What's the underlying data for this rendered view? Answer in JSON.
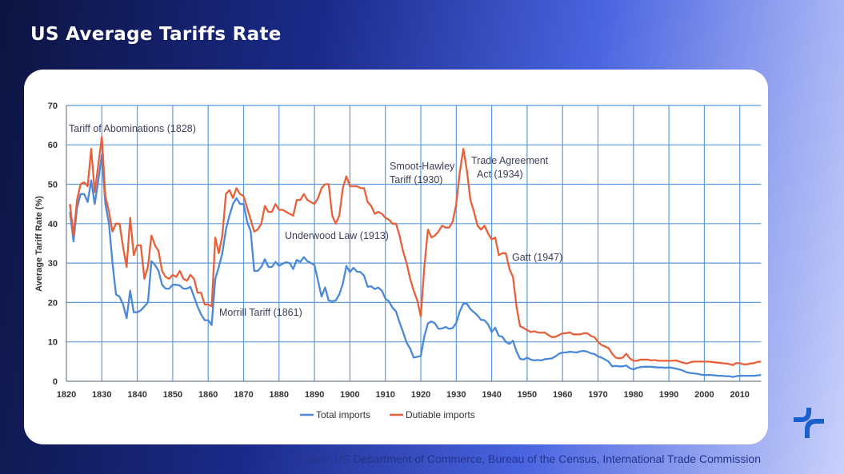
{
  "header": {
    "title": "US Average Tariffs Rate"
  },
  "footer": {
    "source": "Source: US Department of Commerce, Bureau of the Census, International Trade Commission"
  },
  "logo": {
    "icon": "brand-logo-icon",
    "color": "#1a5fd0"
  },
  "chart_data": {
    "type": "line",
    "title": "",
    "xlabel": "",
    "ylabel": "Average Tariff Rate (%)",
    "xlim": [
      1820,
      2016
    ],
    "ylim": [
      0,
      70
    ],
    "grid": true,
    "legend": "bottom-center",
    "x_ticks": [
      "1820",
      "1830",
      "1840",
      "1850",
      "1860",
      "1870",
      "1880",
      "1890",
      "1900",
      "1910",
      "1920",
      "1930",
      "1940",
      "1950",
      "1960",
      "1970",
      "1980",
      "1990",
      "2000",
      "2010"
    ],
    "y_ticks": [
      "0",
      "10",
      "20",
      "30",
      "40",
      "50",
      "60",
      "70"
    ],
    "x_start": 1821,
    "series": [
      {
        "name": "Total imports",
        "color": "#4a88d8",
        "values": [
          43,
          35.5,
          44,
          47.5,
          47.5,
          45.5,
          51,
          45,
          51,
          57.5,
          45,
          40,
          30,
          22,
          21.5,
          19.5,
          16,
          23,
          17.5,
          17.5,
          18,
          19,
          20,
          30.5,
          29.5,
          28,
          24.5,
          23.5,
          23.5,
          24.5,
          24.5,
          24.3,
          23.5,
          23.5,
          24,
          21.5,
          19,
          17,
          15.5,
          15.5,
          14.3,
          26,
          29,
          32.5,
          38.5,
          42,
          45,
          46.5,
          45,
          45,
          40.5,
          38,
          28,
          28,
          29,
          31,
          29,
          29,
          30.3,
          29.3,
          29.8,
          30.2,
          30,
          28.5,
          30.8,
          30.3,
          31.5,
          30.5,
          30,
          29.5,
          25.5,
          21.5,
          23.8,
          20.5,
          20.3,
          20.5,
          22,
          24.7,
          29.3,
          27.7,
          28.8,
          27.8,
          27.7,
          26.8,
          24,
          24.1,
          23.4,
          23.8,
          23,
          21,
          20.3,
          18.7,
          17.7,
          15,
          12.5,
          9.8,
          8.3,
          6,
          6.2,
          6.4,
          11.4,
          14.7,
          15.2,
          14.7,
          13.3,
          13.4,
          13.8,
          13.3,
          13.5,
          14.8,
          17.7,
          19.7,
          19.7,
          18.3,
          17.5,
          16.7,
          15.6,
          15.5,
          14.4,
          12.5,
          13.6,
          11.5,
          11.3,
          10,
          9.5,
          10.3,
          7.6,
          5.7,
          5.5,
          6,
          5.5,
          5.3,
          5.4,
          5.3,
          5.6,
          5.7,
          5.8,
          6.3,
          7,
          7.3,
          7.3,
          7.5,
          7.4,
          7.3,
          7.6,
          7.7,
          7.5,
          7.1,
          6.9,
          6.3,
          6,
          5.5,
          5,
          3.8,
          3.9,
          3.8,
          3.8,
          4,
          3.3,
          3,
          3.4,
          3.6,
          3.7,
          3.7,
          3.7,
          3.6,
          3.5,
          3.5,
          3.4,
          3.5,
          3.4,
          3.2,
          3,
          2.7,
          2.3,
          2.1,
          2,
          1.9,
          1.7,
          1.6,
          1.6,
          1.6,
          1.5,
          1.4,
          1.4,
          1.3,
          1.3,
          1.1,
          1.3,
          1.4,
          1.4,
          1.4,
          1.4,
          1.4,
          1.5,
          1.6
        ]
      },
      {
        "name": "Dutiable imports",
        "color": "#e8603a",
        "values": [
          45,
          37,
          46,
          50,
          50.5,
          49.5,
          59,
          48,
          55,
          62,
          47,
          43,
          38,
          40,
          40,
          34,
          29,
          41.5,
          32,
          34.5,
          34.5,
          26,
          29,
          37,
          34.5,
          33,
          28,
          26.5,
          26,
          27,
          26.5,
          28,
          26,
          25.5,
          27,
          26,
          22.5,
          22.5,
          19.5,
          19.5,
          19,
          36.5,
          32.5,
          37,
          47.5,
          48.5,
          46.5,
          49,
          47.5,
          47,
          44,
          41,
          38,
          38.5,
          40,
          44.5,
          43,
          43,
          45,
          43.5,
          43.5,
          43,
          42.5,
          42,
          46,
          46,
          47.5,
          46,
          45.5,
          45,
          46.5,
          49,
          50,
          50,
          42,
          40,
          42,
          49,
          52,
          49.5,
          49.5,
          49.5,
          49,
          49,
          45.5,
          44.5,
          42.5,
          43,
          42.5,
          41.5,
          41,
          40,
          40,
          37,
          33,
          30,
          26,
          23,
          20.5,
          16.5,
          29,
          38.5,
          36.5,
          37,
          38,
          39.5,
          39,
          39,
          40.5,
          45,
          53,
          59,
          53.5,
          46,
          43,
          39.5,
          38.5,
          39.5,
          37.5,
          36,
          36.5,
          32,
          32.5,
          32.5,
          28.5,
          26.5,
          19,
          14,
          13.5,
          13,
          12.5,
          12.7,
          12.4,
          12.3,
          12.4,
          11.7,
          11.2,
          11.3,
          11.7,
          12.2,
          12.2,
          12.4,
          11.9,
          11.9,
          11.9,
          12.2,
          12.2,
          11.5,
          11.2,
          10,
          9.2,
          8.8,
          8.4,
          7,
          6,
          5.8,
          6,
          7,
          5.8,
          5.2,
          5.2,
          5.5,
          5.5,
          5.5,
          5.3,
          5.4,
          5.2,
          5.2,
          5.2,
          5.2,
          5.2,
          5.3,
          5,
          4.7,
          4.5,
          4.8,
          5,
          5,
          5,
          5,
          5,
          4.9,
          4.8,
          4.7,
          4.6,
          4.5,
          4.4,
          4.1,
          4.6,
          4.6,
          4.3,
          4.3,
          4.5,
          4.6,
          4.9,
          5
        ]
      }
    ],
    "annotations": [
      {
        "text": "Tariff of Abominations (1828)"
      },
      {
        "text": "Morrill Tariff  (1861)"
      },
      {
        "text": "Underwood  Law (1913)"
      },
      {
        "text": "Smoot-Hawley"
      },
      {
        "text": "Tariff (1930)"
      },
      {
        "text": "Trade Agreement"
      },
      {
        "text": "Act (1934)"
      },
      {
        "text": "Gatt (1947)"
      }
    ]
  }
}
